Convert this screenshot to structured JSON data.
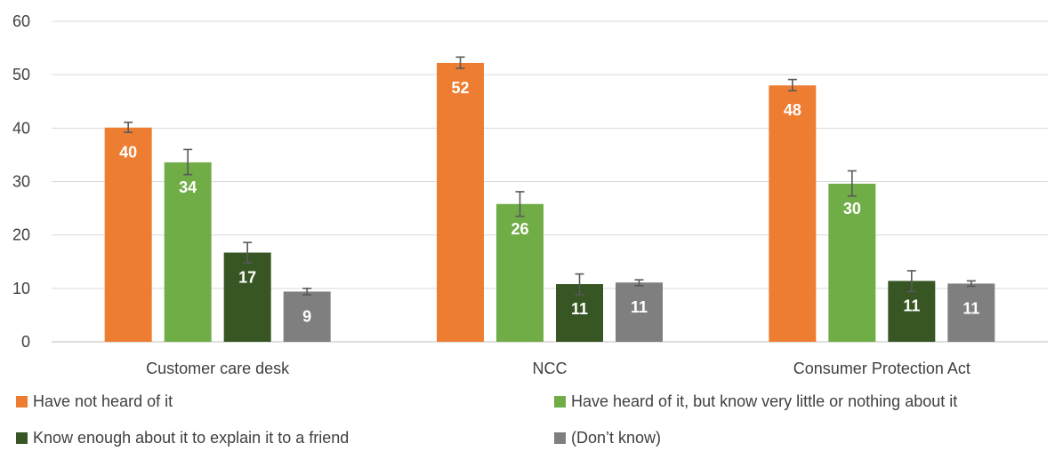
{
  "chart_data": {
    "type": "bar",
    "categories": [
      "Customer care desk",
      "NCC",
      "Consumer Protection Act"
    ],
    "series": [
      {
        "name": "Have not heard of it",
        "color": "#ED7D31",
        "values": [
          40.1,
          52.2,
          48.0
        ],
        "labels": [
          "40",
          "52",
          "48"
        ],
        "err_low": [
          39.2,
          51.2,
          47.0
        ],
        "err_high": [
          41.1,
          53.3,
          49.1
        ]
      },
      {
        "name": "Have heard of it, but know very little or nothing about it",
        "color": "#70AD47",
        "values": [
          33.6,
          25.8,
          29.6
        ],
        "labels": [
          "34",
          "26",
          "30"
        ],
        "err_low": [
          31.3,
          23.5,
          27.3
        ],
        "err_high": [
          36.0,
          28.1,
          32.0
        ]
      },
      {
        "name": "Know enough about it to explain it to a friend",
        "color": "#375623",
        "values": [
          16.7,
          10.8,
          11.4
        ],
        "labels": [
          "17",
          "11",
          "11"
        ],
        "err_low": [
          14.8,
          8.8,
          9.4
        ],
        "err_high": [
          18.6,
          12.7,
          13.3
        ]
      },
      {
        "name": "(Don’t know)",
        "color": "#7F7F7F",
        "values": [
          9.4,
          11.1,
          10.9
        ],
        "labels": [
          "9",
          "11",
          "11"
        ],
        "err_low": [
          8.8,
          10.5,
          10.4
        ],
        "err_high": [
          10.0,
          11.6,
          11.4
        ]
      }
    ],
    "yticks": [
      0,
      10,
      20,
      30,
      40,
      50,
      60
    ],
    "ylim": [
      0,
      60
    ],
    "grid": true,
    "legend_position": "bottom",
    "title": "",
    "xlabel": "",
    "ylabel": ""
  }
}
